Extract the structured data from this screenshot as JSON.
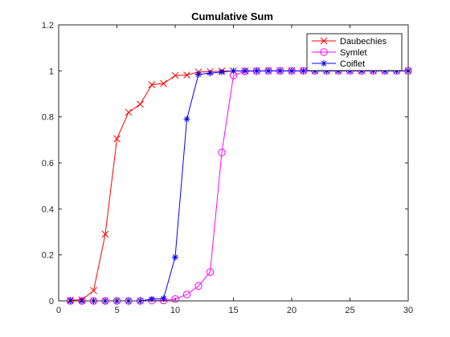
{
  "chart_data": {
    "type": "line",
    "title": "Cumulative Sum",
    "xlabel": "",
    "ylabel": "",
    "xlim": [
      0,
      30
    ],
    "ylim": [
      0,
      1.2
    ],
    "xticks": [
      0,
      5,
      10,
      15,
      20,
      25,
      30
    ],
    "yticks": [
      0,
      0.2,
      0.4,
      0.6,
      0.8,
      1,
      1.2
    ],
    "xtick_labels": [
      "0",
      "5",
      "10",
      "15",
      "20",
      "25",
      "30"
    ],
    "ytick_labels": [
      "0",
      "0.2",
      "0.4",
      "0.6",
      "0.8",
      "1",
      "1.2"
    ],
    "grid": false,
    "legend_position": "top-right",
    "x": [
      1,
      2,
      3,
      4,
      5,
      6,
      7,
      8,
      9,
      10,
      11,
      12,
      13,
      14,
      15,
      16,
      17,
      18,
      19,
      20,
      21,
      22,
      23,
      24,
      25,
      26,
      27,
      28,
      29,
      30
    ],
    "series": [
      {
        "name": "Daubechies",
        "color": "#ff0000",
        "marker": "x",
        "values": [
          0.003,
          0.005,
          0.045,
          0.29,
          0.705,
          0.82,
          0.855,
          0.94,
          0.945,
          0.98,
          0.982,
          0.995,
          0.997,
          0.999,
          1,
          1,
          1,
          1,
          1,
          1,
          1,
          1,
          1,
          1,
          1,
          1,
          1,
          1,
          1,
          1
        ]
      },
      {
        "name": "Symlet",
        "color": "#ff00ff",
        "marker": "o",
        "values": [
          0,
          0,
          0,
          0,
          0,
          0,
          0,
          0.001,
          0.002,
          0.008,
          0.028,
          0.065,
          0.125,
          0.645,
          0.98,
          0.998,
          0.999,
          1,
          1,
          1,
          1,
          1,
          1,
          1,
          1,
          1,
          1,
          1,
          1,
          1
        ]
      },
      {
        "name": "Coiflet",
        "color": "#0000ff",
        "marker": "*",
        "values": [
          0,
          0,
          0,
          0,
          0,
          0,
          0,
          0.008,
          0.01,
          0.19,
          0.79,
          0.985,
          0.99,
          0.995,
          1,
          1,
          1,
          1,
          1,
          1,
          1,
          1,
          1,
          1,
          1,
          1,
          1,
          1,
          1,
          1
        ]
      }
    ]
  }
}
